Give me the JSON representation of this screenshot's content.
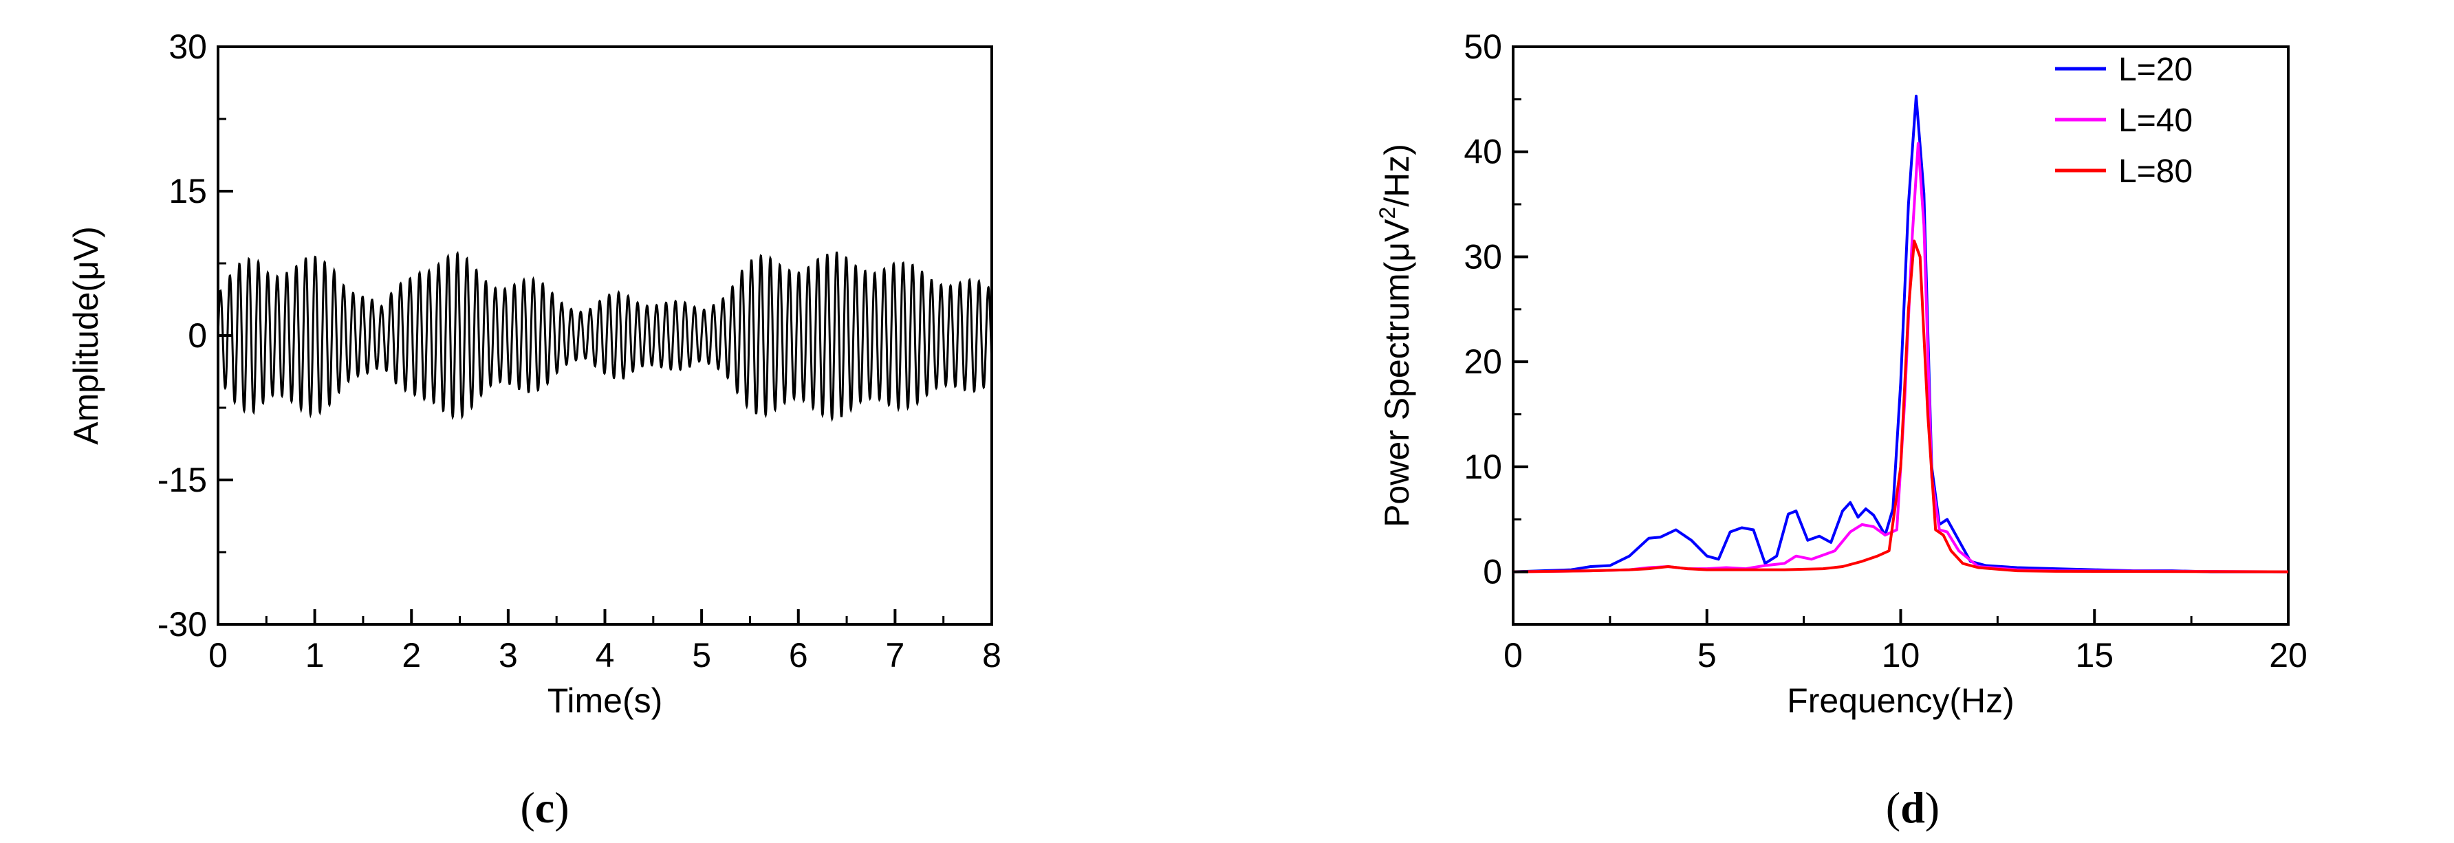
{
  "chart_data": [
    {
      "type": "line",
      "panel": "(c)",
      "panel_label": {
        "open": "(",
        "letter": "c",
        "close": ")"
      },
      "title": "",
      "xlabel": "Time(s)",
      "ylabel": "Amplitude(μV)",
      "xlim": [
        0,
        8
      ],
      "ylim": [
        -30,
        30
      ],
      "xticks": [
        "0",
        "1",
        "2",
        "3",
        "4",
        "5",
        "6",
        "7",
        "8"
      ],
      "yticks": [
        "-30",
        "-15",
        "0",
        "15",
        "30"
      ],
      "grid": false,
      "series": [
        {
          "color": "#000000",
          "carrier_hz": 10.2,
          "sample_step_s": 0.002,
          "envelope": {
            "t": [
              0,
              0.4,
              0.8,
              1.2,
              1.5,
              1.7,
              2.1,
              2.5,
              3.0,
              3.4,
              3.8,
              4.2,
              4.6,
              5.0,
              5.4,
              5.9,
              6.3,
              6.7,
              7.1,
              7.5,
              8.0
            ],
            "amp": [
              5,
              9.5,
              8,
              8.5,
              5,
              3,
              9.5,
              8.5,
              6.5,
              5.5,
              3,
              5,
              4,
              3,
              7.5,
              9.5,
              8.5,
              9.5,
              7.5,
              7.5,
              5
            ]
          }
        }
      ]
    },
    {
      "type": "line",
      "panel": "(d)",
      "panel_label": {
        "open": "(",
        "letter": "d",
        "close": ")"
      },
      "title": "",
      "xlabel": "Frequency(Hz)",
      "ylabel": "Power Spectrum(μV²/Hz)",
      "xlim": [
        0,
        20
      ],
      "ylim": [
        -5,
        50
      ],
      "xticks": [
        "0",
        "5",
        "10",
        "15",
        "20"
      ],
      "yticks": [
        "0",
        "10",
        "20",
        "30",
        "40",
        "50"
      ],
      "grid": false,
      "legend_position": "top-right",
      "series": [
        {
          "name": "L=20",
          "color": "#0000ff",
          "x": [
            0,
            1.5,
            2.0,
            2.5,
            3.0,
            3.5,
            3.8,
            4.2,
            4.6,
            5.0,
            5.3,
            5.6,
            5.9,
            6.2,
            6.5,
            6.8,
            7.1,
            7.3,
            7.6,
            7.9,
            8.2,
            8.5,
            8.7,
            8.9,
            9.1,
            9.3,
            9.6,
            9.8,
            10.0,
            10.2,
            10.4,
            10.6,
            10.8,
            11.0,
            11.2,
            11.5,
            11.8,
            12.2,
            13,
            14,
            15,
            16,
            17,
            18,
            20
          ],
          "y": [
            0,
            0.2,
            0.5,
            0.6,
            1.5,
            3.2,
            3.3,
            4.0,
            3.0,
            1.5,
            1.2,
            3.8,
            4.2,
            4.0,
            0.8,
            1.5,
            5.5,
            5.8,
            3.0,
            3.4,
            2.8,
            5.8,
            6.6,
            5.2,
            6.0,
            5.4,
            3.5,
            6.0,
            18,
            35,
            45.3,
            36,
            10,
            4.5,
            5.0,
            3.0,
            1.0,
            0.6,
            0.4,
            0.3,
            0.2,
            0.1,
            0.1,
            0,
            0
          ]
        },
        {
          "name": "L=40",
          "color": "#ff00ff",
          "x": [
            0,
            2,
            3,
            3.5,
            4.0,
            4.5,
            5,
            5.5,
            6,
            6.5,
            7.0,
            7.3,
            7.7,
            8.0,
            8.3,
            8.7,
            9.0,
            9.3,
            9.6,
            9.9,
            10.1,
            10.3,
            10.45,
            10.6,
            10.8,
            11.0,
            11.2,
            11.5,
            12,
            13,
            14,
            20
          ],
          "y": [
            0,
            0.1,
            0.2,
            0.4,
            0.5,
            0.3,
            0.3,
            0.4,
            0.3,
            0.6,
            0.8,
            1.5,
            1.2,
            1.6,
            2.0,
            3.8,
            4.5,
            4.3,
            3.5,
            4.0,
            16,
            32,
            40.8,
            33,
            9,
            4.0,
            3.8,
            2.0,
            0.5,
            0.2,
            0.1,
            0
          ]
        },
        {
          "name": "L=80",
          "color": "#ff0000",
          "x": [
            0,
            2,
            3,
            3.5,
            4.0,
            4.5,
            5,
            6,
            7,
            8,
            8.5,
            9.0,
            9.4,
            9.7,
            10.0,
            10.2,
            10.35,
            10.5,
            10.7,
            10.9,
            11.1,
            11.3,
            11.6,
            12,
            13,
            14,
            20
          ],
          "y": [
            0,
            0.1,
            0.2,
            0.3,
            0.5,
            0.3,
            0.2,
            0.2,
            0.2,
            0.3,
            0.5,
            1.0,
            1.5,
            2.0,
            10,
            25,
            31.5,
            30,
            15,
            4.0,
            3.5,
            2.0,
            0.8,
            0.4,
            0.1,
            0.05,
            0
          ]
        }
      ]
    }
  ]
}
